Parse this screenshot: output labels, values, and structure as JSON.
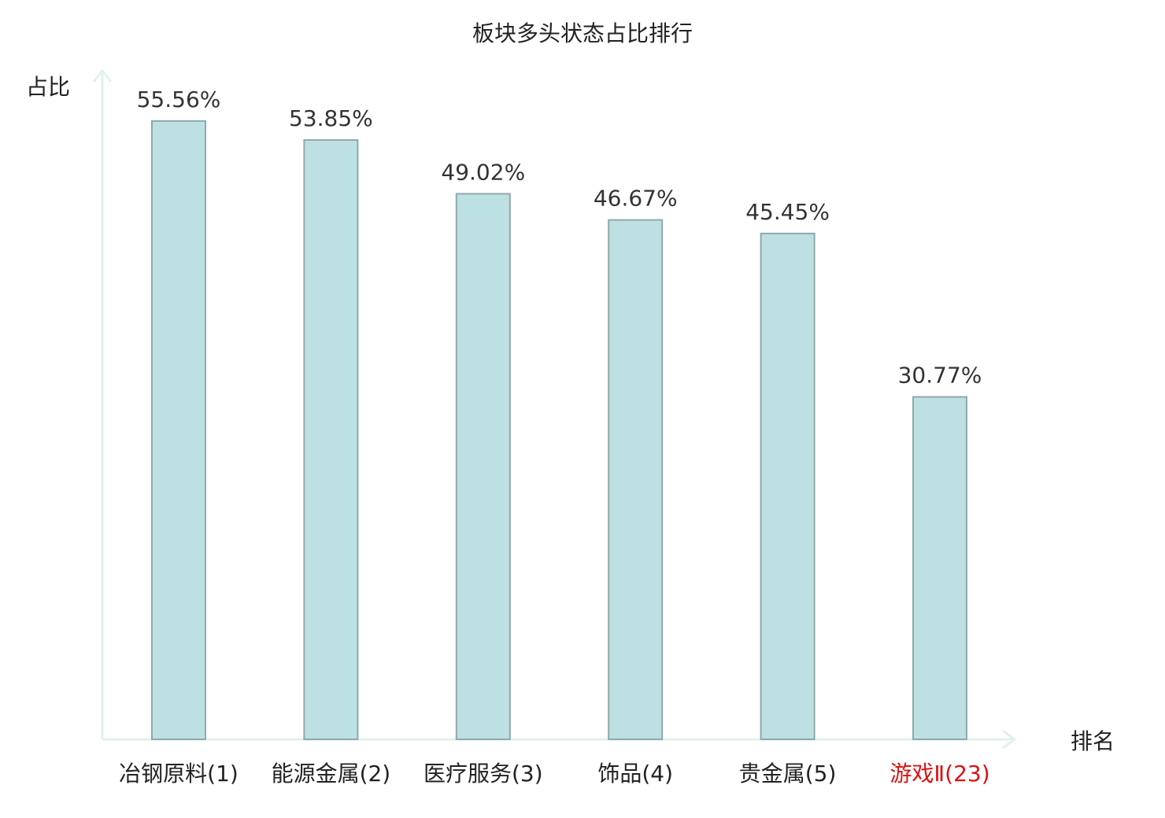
{
  "chart_data": {
    "type": "bar",
    "title": "板块多头状态占比排行",
    "ylabel": "占比",
    "xlabel": "排名",
    "categories": [
      "冶钢原料(1)",
      "能源金属(2)",
      "医疗服务(3)",
      "饰品(4)",
      "贵金属(5)",
      "游戏Ⅱ(23)"
    ],
    "values": [
      55.56,
      53.85,
      49.02,
      46.67,
      45.45,
      30.77
    ],
    "value_labels": [
      "55.56%",
      "53.85%",
      "49.02%",
      "46.67%",
      "45.45%",
      "30.77%"
    ],
    "highlight_index": 5,
    "ylim": [
      0,
      60
    ],
    "grid": false,
    "legend": "none",
    "colors": {
      "bar_fill": "#bde0e3",
      "bar_stroke": "#8fa9ab",
      "axis": "#e0f2f0",
      "label": "#222222",
      "value_label": "#333333",
      "highlight": "#dd1111"
    }
  }
}
